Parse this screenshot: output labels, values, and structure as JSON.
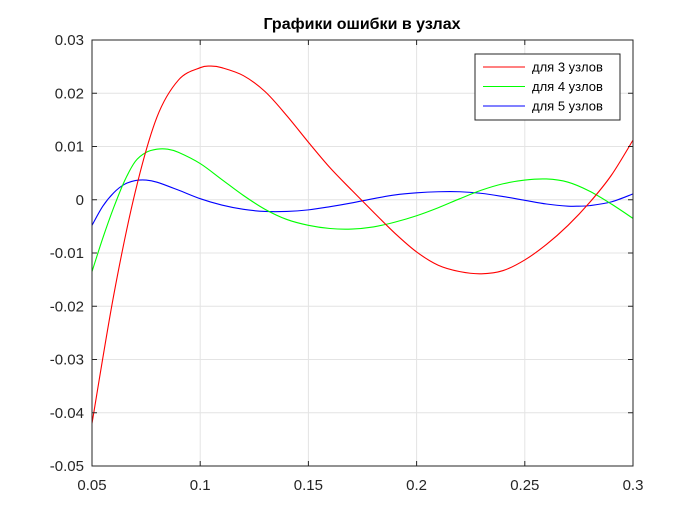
{
  "chart_data": {
    "type": "line",
    "title": "Графики ошибки в узлах",
    "xlabel": "",
    "ylabel": "",
    "xlim": [
      0.05,
      0.3
    ],
    "ylim": [
      -0.05,
      0.03
    ],
    "grid": true,
    "legend_position": "top-right",
    "x_ticks": [
      {
        "value": 0.05,
        "label": "0.05"
      },
      {
        "value": 0.1,
        "label": "0.1"
      },
      {
        "value": 0.15,
        "label": "0.15"
      },
      {
        "value": 0.2,
        "label": "0.2"
      },
      {
        "value": 0.25,
        "label": "0.25"
      },
      {
        "value": 0.3,
        "label": "0.3"
      }
    ],
    "y_ticks": [
      {
        "value": 0.03,
        "label": "0.03"
      },
      {
        "value": 0.02,
        "label": "0.02"
      },
      {
        "value": 0.01,
        "label": "0.01"
      },
      {
        "value": 0,
        "label": "0"
      },
      {
        "value": -0.01,
        "label": "-0.01"
      },
      {
        "value": -0.02,
        "label": "-0.02"
      },
      {
        "value": -0.03,
        "label": "-0.03"
      },
      {
        "value": -0.04,
        "label": "-0.04"
      },
      {
        "value": -0.05,
        "label": "-0.05"
      }
    ],
    "series": [
      {
        "name": "для 3 узлов",
        "color": "#ff0000",
        "x": [
          0.05,
          0.06,
          0.07,
          0.08,
          0.09,
          0.1,
          0.105,
          0.11,
          0.12,
          0.13,
          0.14,
          0.15,
          0.16,
          0.17,
          0.18,
          0.19,
          0.2,
          0.21,
          0.22,
          0.23,
          0.24,
          0.25,
          0.26,
          0.27,
          0.28,
          0.29,
          0.3
        ],
        "y": [
          -0.042,
          -0.018,
          0.0015,
          0.0155,
          0.0225,
          0.0248,
          0.0251,
          0.0248,
          0.0233,
          0.0203,
          0.0158,
          0.0108,
          0.006,
          0.0018,
          -0.0023,
          -0.0063,
          -0.0098,
          -0.0123,
          -0.0135,
          -0.0139,
          -0.0133,
          -0.0113,
          -0.0084,
          -0.0048,
          -0.0005,
          0.0046,
          0.0112
        ]
      },
      {
        "name": "для 4 узлов",
        "color": "#00ff00",
        "x": [
          0.05,
          0.055,
          0.06,
          0.065,
          0.07,
          0.075,
          0.08,
          0.085,
          0.09,
          0.1,
          0.11,
          0.12,
          0.13,
          0.14,
          0.15,
          0.16,
          0.17,
          0.18,
          0.19,
          0.2,
          0.21,
          0.22,
          0.23,
          0.24,
          0.25,
          0.26,
          0.27,
          0.28,
          0.29,
          0.3
        ],
        "y": [
          -0.0135,
          -0.0072,
          -0.0015,
          0.0035,
          0.0072,
          0.0089,
          0.0095,
          0.0095,
          0.0089,
          0.0068,
          0.0038,
          0.0008,
          -0.0018,
          -0.0037,
          -0.0048,
          -0.0054,
          -0.0055,
          -0.0051,
          -0.0042,
          -0.003,
          -0.0015,
          0.0002,
          0.0018,
          0.003,
          0.0037,
          0.0039,
          0.0033,
          0.0016,
          -0.0008,
          -0.0035
        ]
      },
      {
        "name": "для 5 узлов",
        "color": "#0000ff",
        "x": [
          0.05,
          0.055,
          0.06,
          0.065,
          0.07,
          0.075,
          0.08,
          0.09,
          0.1,
          0.11,
          0.12,
          0.13,
          0.14,
          0.15,
          0.16,
          0.17,
          0.18,
          0.19,
          0.2,
          0.21,
          0.22,
          0.23,
          0.24,
          0.25,
          0.26,
          0.27,
          0.275,
          0.28,
          0.29,
          0.3
        ],
        "y": [
          -0.0048,
          -0.0012,
          0.0013,
          0.0029,
          0.0036,
          0.0037,
          0.0033,
          0.0018,
          0.0002,
          -0.001,
          -0.0018,
          -0.0022,
          -0.0022,
          -0.0019,
          -0.0013,
          -0.0006,
          0.0002,
          0.0009,
          0.0013,
          0.0015,
          0.0015,
          0.0012,
          0.0006,
          -0.0001,
          -0.0008,
          -0.0012,
          -0.0012,
          -0.0011,
          -0.0004,
          0.0011
        ]
      }
    ]
  }
}
